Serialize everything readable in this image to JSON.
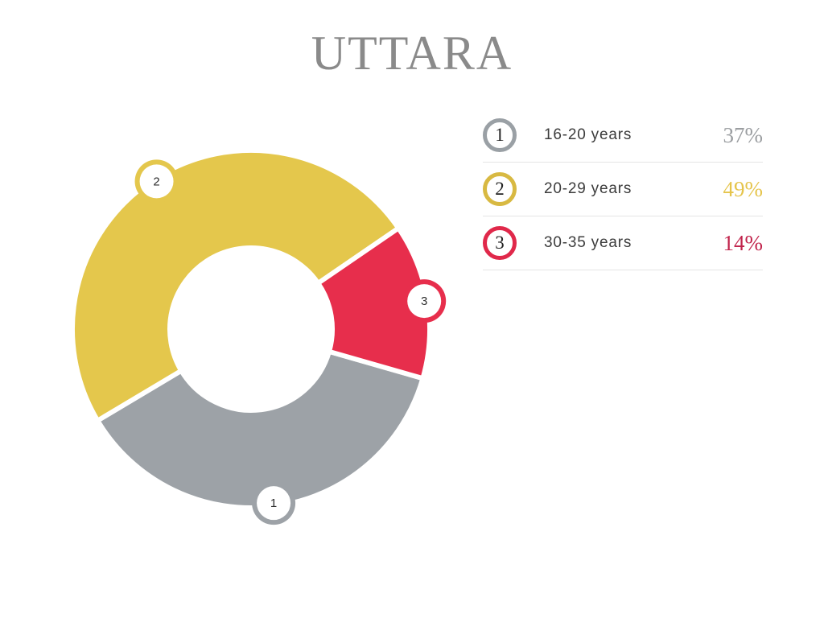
{
  "page": {
    "title": "UTTARA",
    "background_color": "#ffffff",
    "title_color": "#8a8a8a",
    "label_color": "#3c3c3c",
    "divider_color": "#e5e5e5",
    "badge_number_color": "#2e2e2e"
  },
  "chart_data": {
    "type": "donut",
    "title": "UTTARA",
    "unit": "percent",
    "direction": "clockwise",
    "start_angle_deg": -16,
    "inner_radius_ratio": 0.455,
    "legend_position": "right",
    "total": 100,
    "segments": [
      {
        "rank": "1",
        "label": "16-20 years",
        "value": 37,
        "display_value": "37%",
        "color": "#9da2a7",
        "ring_color": "#9aa0a5",
        "value_color": "#9b9ea1"
      },
      {
        "rank": "2",
        "label": "20-29 years",
        "value": 49,
        "display_value": "49%",
        "color": "#e4c74c",
        "ring_color": "#d8b942",
        "value_color": "#e5c44b"
      },
      {
        "rank": "3",
        "label": "30-35 years",
        "value": 14,
        "display_value": "14%",
        "color": "#e72e4c",
        "ring_color": "#e0284a",
        "value_color": "#c1234b"
      }
    ]
  }
}
